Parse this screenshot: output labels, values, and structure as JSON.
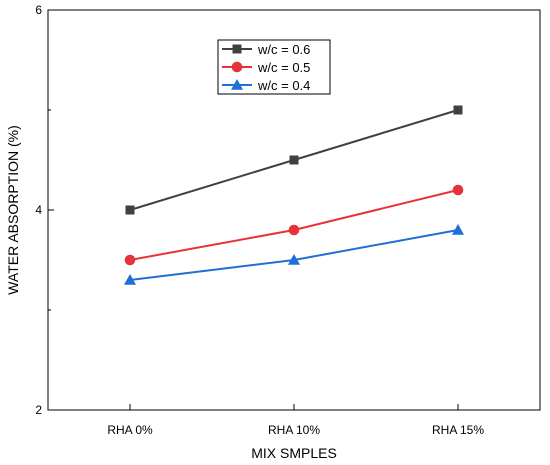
{
  "chart_data": {
    "type": "line",
    "categories": [
      "RHA 0%",
      "RHA 10%",
      "RHA 15%"
    ],
    "series": [
      {
        "name": "w/c = 0.6",
        "values": [
          4.0,
          4.5,
          5.0
        ],
        "color": "#404040",
        "marker": "square"
      },
      {
        "name": "w/c = 0.5",
        "values": [
          3.5,
          3.8,
          4.2
        ],
        "color": "#e8323a",
        "marker": "circle"
      },
      {
        "name": "w/c = 0.4",
        "values": [
          3.3,
          3.5,
          3.8
        ],
        "color": "#1f6fd6",
        "marker": "triangle"
      }
    ],
    "xlabel": "MIX SMPLES",
    "ylabel": "WATER ABSORPTION (%)",
    "ylim": [
      2,
      6
    ],
    "yticks": [
      "2",
      "4",
      "6"
    ],
    "grid": false,
    "legend_position": "top-center"
  }
}
